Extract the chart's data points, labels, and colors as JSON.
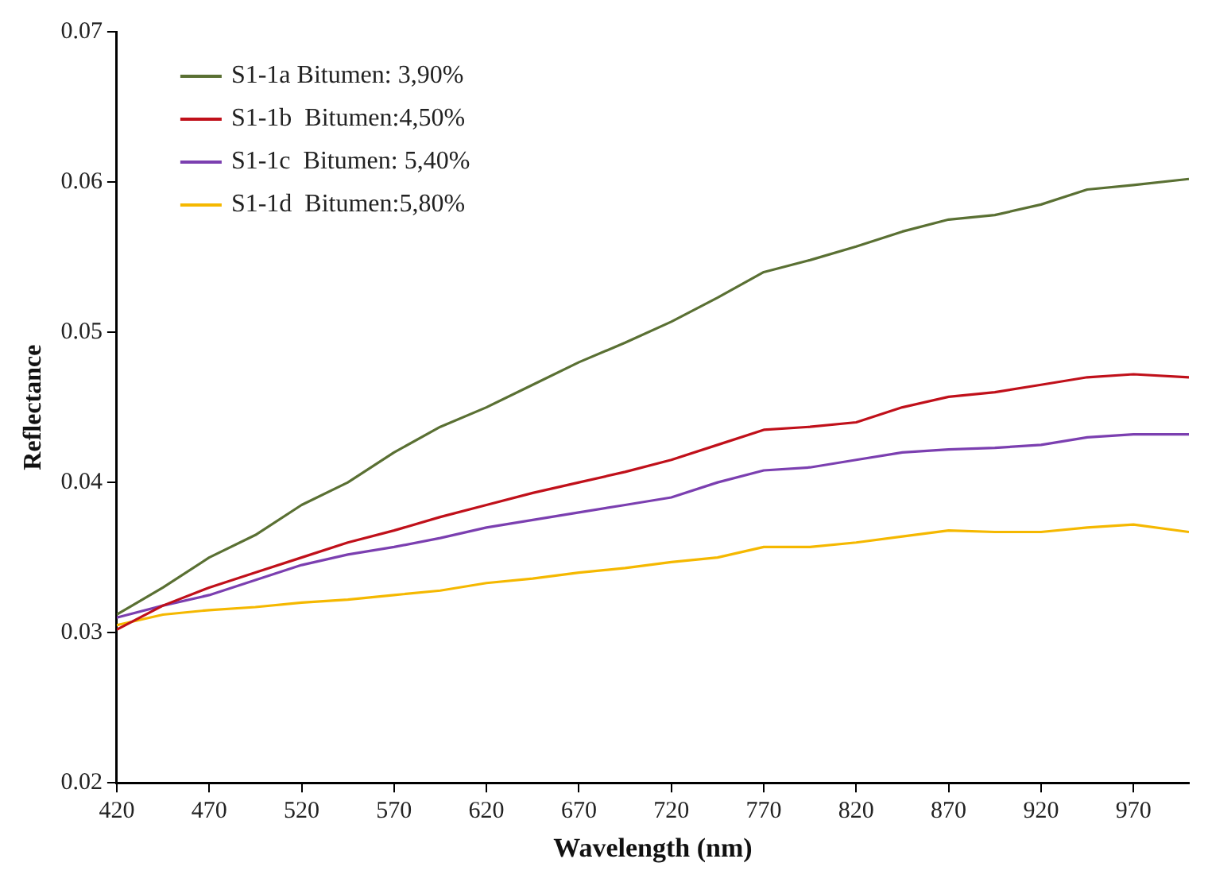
{
  "chart_data": {
    "type": "line",
    "xlabel": "Wavelength (nm)",
    "ylabel": "Reflectance",
    "x": [
      420,
      445,
      470,
      495,
      520,
      545,
      570,
      595,
      620,
      645,
      670,
      695,
      720,
      745,
      770,
      795,
      820,
      845,
      870,
      895,
      920,
      945,
      970,
      1000
    ],
    "series": [
      {
        "name": "S1-1a Bitumen: 3,90%",
        "color": "#5a7033",
        "values": [
          0.0312,
          0.033,
          0.035,
          0.0365,
          0.0385,
          0.04,
          0.042,
          0.0437,
          0.045,
          0.0465,
          0.048,
          0.0493,
          0.0507,
          0.0523,
          0.054,
          0.0548,
          0.0557,
          0.0567,
          0.0575,
          0.0578,
          0.0585,
          0.0595,
          0.0598,
          0.0602
        ]
      },
      {
        "name": "S1-1b  Bitumen:4,50%",
        "color": "#c0101a",
        "values": [
          0.0302,
          0.0318,
          0.033,
          0.034,
          0.035,
          0.036,
          0.0368,
          0.0377,
          0.0385,
          0.0393,
          0.04,
          0.0407,
          0.0415,
          0.0425,
          0.0435,
          0.0437,
          0.044,
          0.045,
          0.0457,
          0.046,
          0.0465,
          0.047,
          0.0472,
          0.047
        ]
      },
      {
        "name": "S1-1c  Bitumen: 5,40%",
        "color": "#7b3fb0",
        "values": [
          0.031,
          0.0318,
          0.0325,
          0.0335,
          0.0345,
          0.0352,
          0.0357,
          0.0363,
          0.037,
          0.0375,
          0.038,
          0.0385,
          0.039,
          0.04,
          0.0408,
          0.041,
          0.0415,
          0.042,
          0.0422,
          0.0423,
          0.0425,
          0.043,
          0.0432,
          0.0432
        ]
      },
      {
        "name": "S1-1d  Bitumen:5,80%",
        "color": "#f5b800",
        "values": [
          0.0305,
          0.0312,
          0.0315,
          0.0317,
          0.032,
          0.0322,
          0.0325,
          0.0328,
          0.0333,
          0.0336,
          0.034,
          0.0343,
          0.0347,
          0.035,
          0.0357,
          0.0357,
          0.036,
          0.0364,
          0.0368,
          0.0367,
          0.0367,
          0.037,
          0.0372,
          0.0367
        ]
      }
    ],
    "xlim": [
      420,
      1000
    ],
    "xticks": [
      420,
      470,
      520,
      570,
      620,
      670,
      720,
      770,
      820,
      870,
      920,
      970
    ],
    "ylim": [
      0.02,
      0.07
    ],
    "yticks": [
      0.02,
      0.03,
      0.04,
      0.05,
      0.06,
      0.07
    ],
    "grid": false,
    "legend": "top left",
    "marker": "none",
    "line_style": "solid"
  }
}
